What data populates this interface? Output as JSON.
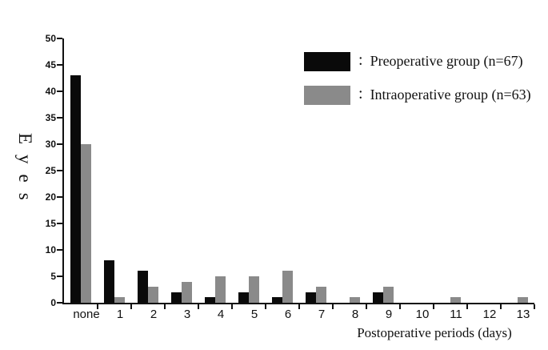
{
  "figure": {
    "y_axis": {
      "title": "Eyes"
    },
    "x_axis": {
      "title": "Postoperative periods (days)"
    },
    "legend": {
      "items": [
        {
          "separator": ":",
          "label": "Preoperative group (n=67)",
          "color": "#0a0a0a"
        },
        {
          "separator": ":",
          "label": "Intraoperative group (n=63)",
          "color": "#8a8a8a"
        }
      ]
    }
  },
  "chart_data": {
    "type": "bar",
    "title": "",
    "xlabel": "Postoperative periods (days)",
    "ylabel": "Eyes",
    "categories": [
      "none",
      "1",
      "2",
      "3",
      "4",
      "5",
      "6",
      "7",
      "8",
      "9",
      "10",
      "11",
      "12",
      "13"
    ],
    "series": [
      {
        "name": "Preoperative group (n=67)",
        "color": "#0a0a0a",
        "values": [
          43,
          8,
          6,
          2,
          1,
          2,
          1,
          2,
          0,
          2,
          0,
          0,
          0,
          0
        ]
      },
      {
        "name": "Intraoperative group (n=63)",
        "color": "#8a8a8a",
        "values": [
          30,
          1,
          3,
          4,
          5,
          5,
          6,
          3,
          1,
          3,
          0,
          1,
          0,
          1
        ]
      }
    ],
    "ylim": [
      0,
      50
    ],
    "yticks": [
      0,
      5,
      10,
      15,
      20,
      25,
      30,
      35,
      40,
      45,
      50
    ],
    "grid": false,
    "legend_position": "top-right",
    "background": "#ffffff"
  }
}
